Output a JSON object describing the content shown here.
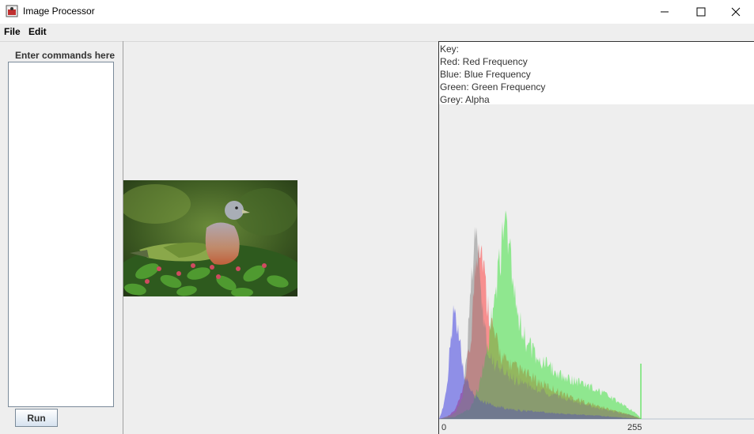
{
  "window": {
    "title": "Image Processor",
    "controls": [
      "minimize",
      "maximize",
      "close"
    ]
  },
  "menu": {
    "items": [
      "File",
      "Edit"
    ]
  },
  "commands": {
    "label": "Enter commands here",
    "value": "",
    "run_label": "Run"
  },
  "image": {
    "subject": "green pigeon perched on leafy branch with red berries"
  },
  "histogram": {
    "key_title": "Key:",
    "key": [
      {
        "text": "Red: Red Frequency",
        "color": "#e03030"
      },
      {
        "text": "Blue: Blue Frequency",
        "color": "#3030e0"
      },
      {
        "text": "Green: Green Frequency",
        "color": "#30d030"
      },
      {
        "text": "Grey: Alpha",
        "color": "#808080"
      }
    ],
    "x_ticks": [
      "0",
      "255"
    ]
  },
  "chart_data": {
    "type": "area",
    "x_range": [
      0,
      255
    ],
    "series": [
      {
        "name": "Red Frequency",
        "color": "#ff3030",
        "peaks": [
          [
            0,
            0
          ],
          [
            10,
            2
          ],
          [
            20,
            8
          ],
          [
            30,
            25
          ],
          [
            40,
            70
          ],
          [
            45,
            130
          ],
          [
            50,
            170
          ],
          [
            55,
            150
          ],
          [
            60,
            110
          ],
          [
            70,
            75
          ],
          [
            80,
            55
          ],
          [
            100,
            45
          ],
          [
            130,
            32
          ],
          [
            160,
            22
          ],
          [
            190,
            14
          ],
          [
            220,
            8
          ],
          [
            250,
            2
          ],
          [
            255,
            0
          ]
        ]
      },
      {
        "name": "Green Frequency",
        "color": "#30e030",
        "peaks": [
          [
            0,
            0
          ],
          [
            20,
            2
          ],
          [
            40,
            10
          ],
          [
            50,
            30
          ],
          [
            60,
            60
          ],
          [
            70,
            110
          ],
          [
            75,
            140
          ],
          [
            80,
            160
          ],
          [
            85,
            180
          ],
          [
            90,
            150
          ],
          [
            100,
            95
          ],
          [
            110,
            70
          ],
          [
            130,
            52
          ],
          [
            150,
            42
          ],
          [
            170,
            35
          ],
          [
            190,
            30
          ],
          [
            210,
            22
          ],
          [
            235,
            12
          ],
          [
            250,
            5
          ],
          [
            255,
            0
          ]
        ]
      },
      {
        "name": "Blue Frequency",
        "color": "#3030e0",
        "peaks": [
          [
            0,
            0
          ],
          [
            5,
            10
          ],
          [
            10,
            30
          ],
          [
            15,
            80
          ],
          [
            20,
            100
          ],
          [
            25,
            80
          ],
          [
            30,
            45
          ],
          [
            40,
            25
          ],
          [
            50,
            18
          ],
          [
            70,
            12
          ],
          [
            100,
            8
          ],
          [
            150,
            5
          ],
          [
            200,
            3
          ],
          [
            255,
            0
          ]
        ]
      },
      {
        "name": "Alpha",
        "color": "#808080",
        "peaks": [
          [
            0,
            0
          ],
          [
            20,
            5
          ],
          [
            30,
            20
          ],
          [
            35,
            60
          ],
          [
            40,
            120
          ],
          [
            45,
            180
          ],
          [
            50,
            150
          ],
          [
            55,
            100
          ],
          [
            60,
            70
          ],
          [
            70,
            50
          ],
          [
            90,
            38
          ],
          [
            120,
            28
          ],
          [
            150,
            20
          ],
          [
            180,
            14
          ],
          [
            210,
            8
          ],
          [
            240,
            4
          ],
          [
            255,
            0
          ]
        ]
      }
    ]
  }
}
